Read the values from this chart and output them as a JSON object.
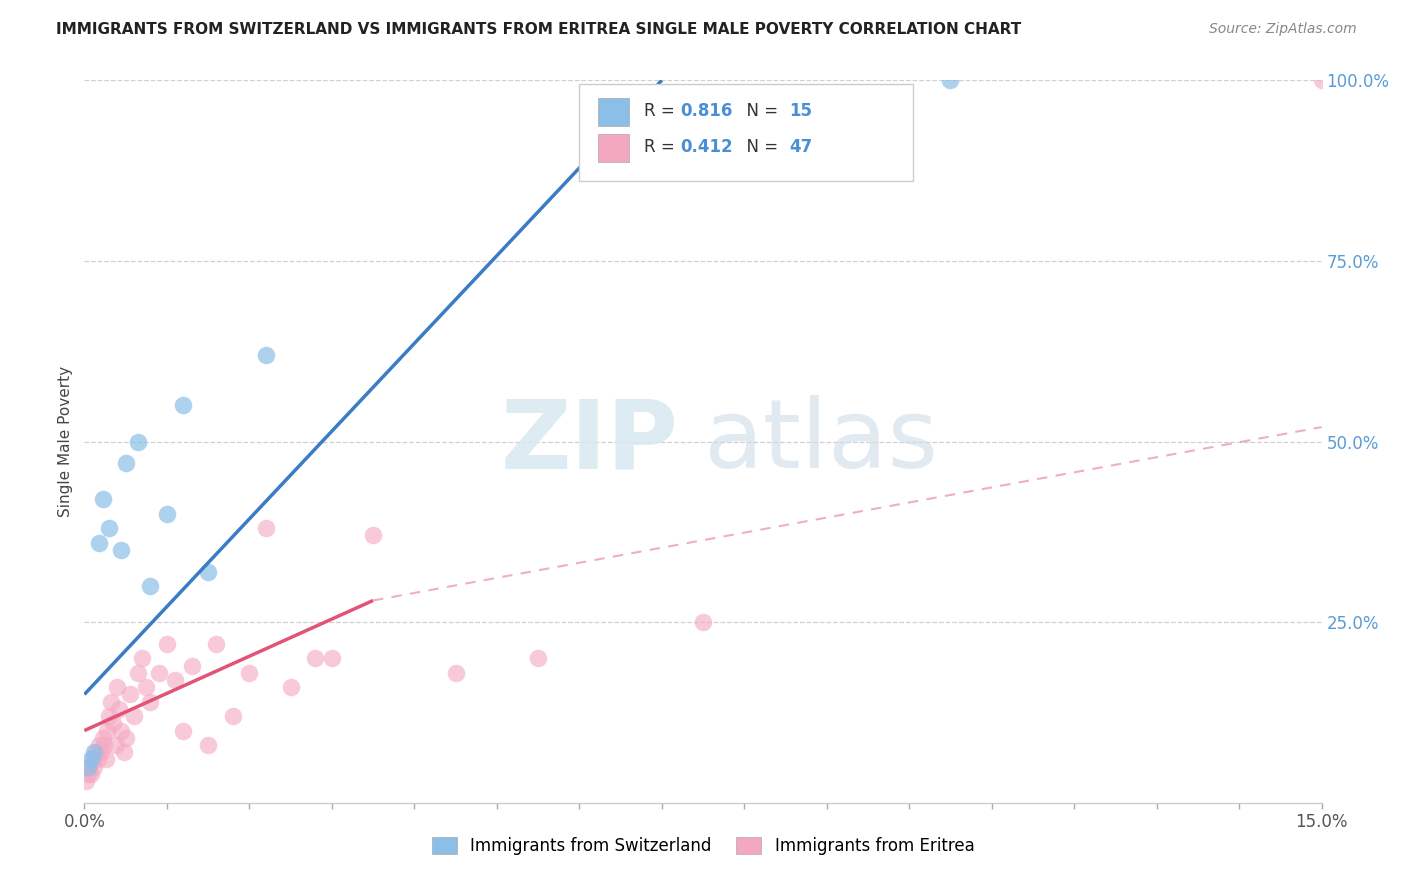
{
  "title": "IMMIGRANTS FROM SWITZERLAND VS IMMIGRANTS FROM ERITREA SINGLE MALE POVERTY CORRELATION CHART",
  "source": "Source: ZipAtlas.com",
  "ylabel_left": "Single Male Poverty",
  "legend_label1": "Immigrants from Switzerland",
  "legend_label2": "Immigrants from Eritrea",
  "color_swiss": "#8bbfe8",
  "color_eritrea": "#f4a8c0",
  "color_swiss_line": "#3a7cc5",
  "color_eritrea_line": "#e05575",
  "color_eritrea_dashed": "#e8909f",
  "watermark_zip": "ZIP",
  "watermark_atlas": "atlas",
  "xlim": [
    0.0,
    15.0
  ],
  "ylim": [
    0.0,
    100.0
  ],
  "swiss_x": [
    0.05,
    0.08,
    0.12,
    0.18,
    0.22,
    0.3,
    0.45,
    0.5,
    0.65,
    0.8,
    1.0,
    1.2,
    1.5,
    2.2,
    10.5
  ],
  "swiss_y": [
    5.0,
    6.0,
    7.0,
    36.0,
    42.0,
    38.0,
    35.0,
    47.0,
    50.0,
    30.0,
    40.0,
    55.0,
    32.0,
    62.0,
    100.0
  ],
  "eritrea_x": [
    0.02,
    0.04,
    0.06,
    0.08,
    0.1,
    0.12,
    0.14,
    0.16,
    0.18,
    0.2,
    0.22,
    0.24,
    0.26,
    0.28,
    0.3,
    0.32,
    0.35,
    0.38,
    0.4,
    0.42,
    0.45,
    0.48,
    0.5,
    0.55,
    0.6,
    0.65,
    0.7,
    0.75,
    0.8,
    0.9,
    1.0,
    1.1,
    1.2,
    1.3,
    1.5,
    1.6,
    1.8,
    2.0,
    2.2,
    2.5,
    2.8,
    3.0,
    3.5,
    4.5,
    5.5,
    7.5,
    15.0
  ],
  "eritrea_y": [
    3.0,
    4.0,
    5.0,
    4.0,
    6.0,
    5.0,
    7.0,
    6.0,
    8.0,
    7.0,
    9.0,
    8.0,
    6.0,
    10.0,
    12.0,
    14.0,
    11.0,
    8.0,
    16.0,
    13.0,
    10.0,
    7.0,
    9.0,
    15.0,
    12.0,
    18.0,
    20.0,
    16.0,
    14.0,
    18.0,
    22.0,
    17.0,
    10.0,
    19.0,
    8.0,
    22.0,
    12.0,
    18.0,
    38.0,
    16.0,
    20.0,
    20.0,
    37.0,
    18.0,
    20.0,
    25.0,
    100.0
  ],
  "swiss_line_x0": 0.0,
  "swiss_line_y0": 15.0,
  "swiss_line_x1": 7.0,
  "swiss_line_y1": 100.0,
  "eritrea_solid_x0": 0.0,
  "eritrea_solid_y0": 10.0,
  "eritrea_solid_x1": 3.5,
  "eritrea_solid_y1": 28.0,
  "eritrea_dashed_x0": 3.5,
  "eritrea_dashed_y0": 28.0,
  "eritrea_dashed_x1": 15.0,
  "eritrea_dashed_y1": 52.0
}
